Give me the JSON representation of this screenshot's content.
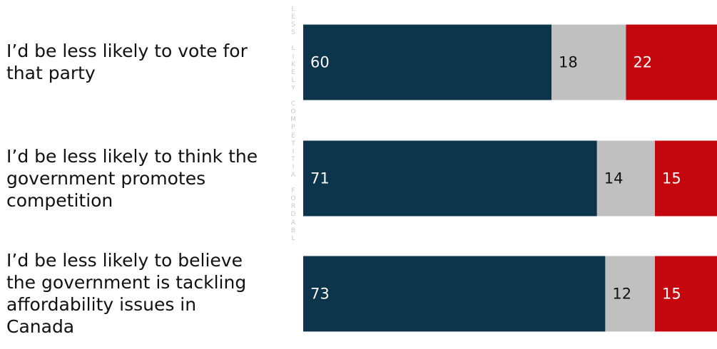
{
  "colors": {
    "segment_1": "#0c354c",
    "segment_2": "#c0c0c0",
    "segment_3": "#c4070e",
    "label_on_dark": "#ffffff",
    "label_on_light": "#111111"
  },
  "vertical_text": "LESS LIKELY COMPETITIA FORDABL",
  "chart_data": {
    "type": "bar",
    "orientation": "horizontal",
    "stacked": true,
    "xlim": [
      0,
      100
    ],
    "categories": [
      "I’d be less likely to vote for that party",
      "I’d be less likely to think the government promotes competition",
      "I’d be less likely to believe the government is tackling affordability issues in Canada"
    ],
    "category_lines": [
      [
        "I’d be less likely to vote for",
        "that party"
      ],
      [
        "I’d be less likely to think the",
        "government promotes",
        "competition"
      ],
      [
        "I’d be less likely to believe",
        "the government is tackling",
        "affordability issues in",
        "Canada"
      ]
    ],
    "series": [
      {
        "values": [
          60,
          71,
          73
        ]
      },
      {
        "values": [
          18,
          14,
          12
        ]
      },
      {
        "values": [
          22,
          15,
          15
        ]
      }
    ]
  }
}
